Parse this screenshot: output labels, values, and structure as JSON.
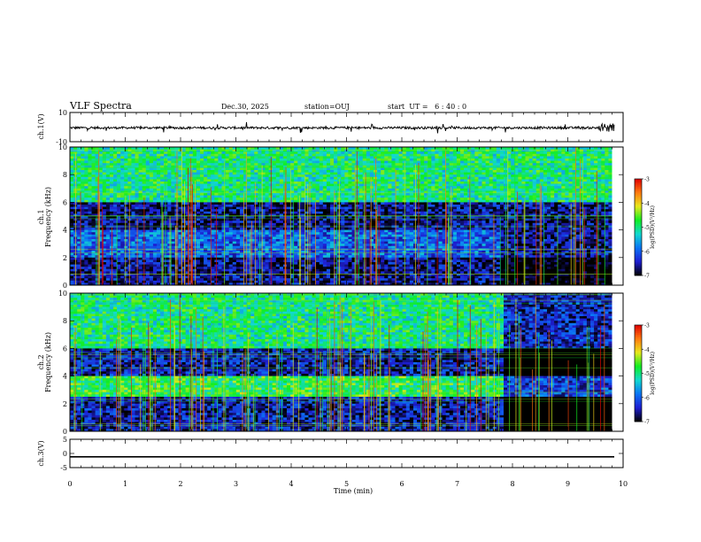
{
  "header": {
    "title": "VLF Spectra",
    "date": "Dec.30, 2025",
    "station": "station=OUJ",
    "start_ut": "start  UT =   6 : 40 : 0"
  },
  "colorbar": {
    "label": "log(PSD)(V²/Hz)",
    "ticks": [
      "-3",
      "-4",
      "-5",
      "-6",
      "-7"
    ],
    "range": [
      -7,
      -3
    ],
    "colors": [
      "#000000",
      "#1e1ed2",
      "#0b74f5",
      "#12d9d0",
      "#10ee22",
      "#e8e81c",
      "#ff7a10",
      "#e00000",
      "#ffffff"
    ]
  },
  "chart_data": [
    {
      "type": "line",
      "ylabel": "ch.1(V)",
      "ylim": [
        -10,
        10
      ],
      "yticks": [
        "10",
        "-10"
      ],
      "x_range_min": [
        0,
        10
      ],
      "series": [
        {
          "values_description_level": -0.5,
          "noise": "broadband impulsive spikes"
        }
      ]
    },
    {
      "type": "heatmap",
      "ylabel": "ch.1\nFrequency (kHz)",
      "ylim_khz": [
        0,
        10
      ],
      "yticks": [
        "0",
        "2",
        "4",
        "6",
        "8",
        "10"
      ],
      "x_range_min": [
        0,
        9.8
      ],
      "bands": [
        {
          "f_khz": [
            6,
            10
          ],
          "log_psd": -5.0
        },
        {
          "f_khz": [
            4,
            6
          ],
          "log_psd": -6.6
        },
        {
          "f_khz": [
            2,
            4
          ],
          "log_psd": -6.0
        },
        {
          "f_khz": [
            0,
            2
          ],
          "log_psd": -6.6
        }
      ]
    },
    {
      "type": "heatmap",
      "ylabel": "ch.2\nFrequency (kHz)",
      "ylim_khz": [
        0,
        10
      ],
      "yticks": [
        "0",
        "2",
        "4",
        "6",
        "8",
        "10"
      ],
      "x_range_min": [
        0,
        9.8
      ],
      "bands": [
        {
          "f_khz": [
            6,
            10
          ],
          "log_psd": -5.0
        },
        {
          "f_khz": [
            2.5,
            4
          ],
          "log_psd": -4.8
        },
        {
          "f_khz": [
            0,
            2
          ],
          "log_psd": -6.5
        }
      ],
      "transition_min": 7.85
    },
    {
      "type": "line",
      "ylabel": "ch.3(V)",
      "ylim": [
        -5,
        5
      ],
      "yticks": [
        "5",
        "0",
        "-5"
      ],
      "x_range_min": [
        0,
        10
      ],
      "series": [
        {
          "values_description_level": -1.2
        }
      ]
    }
  ],
  "xaxis": {
    "label": "Time (min)",
    "ticks": [
      "0",
      "1",
      "2",
      "3",
      "4",
      "5",
      "6",
      "7",
      "8",
      "9",
      "10"
    ],
    "range": [
      0,
      10
    ]
  }
}
